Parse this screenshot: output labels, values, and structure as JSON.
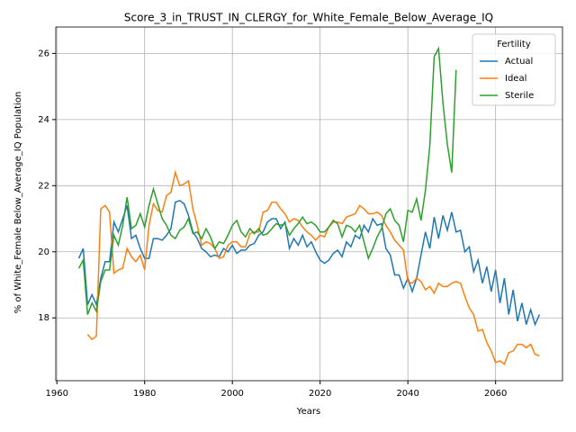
{
  "chart_data": {
    "type": "line",
    "title": "Score_3_in_TRUST_IN_CLERGY_for_White_Female_Below_Average_IQ",
    "x_label": "Years",
    "y_label": "% of White_Female Below_Average_IQ Population",
    "legend_title": "Fertility",
    "legend_position": "upper right",
    "grid": true,
    "xlim": [
      1959.75,
      2075.25
    ],
    "ylim": [
      16.1,
      26.8
    ],
    "xticks": [
      1960,
      1980,
      2000,
      2020,
      2040,
      2060
    ],
    "yticks": [
      18,
      20,
      22,
      24,
      26
    ],
    "x": [
      1965,
      1966,
      1967,
      1968,
      1969,
      1970,
      1971,
      1972,
      1973,
      1974,
      1975,
      1976,
      1977,
      1978,
      1979,
      1980,
      1981,
      1982,
      1983,
      1984,
      1985,
      1986,
      1987,
      1988,
      1989,
      1990,
      1991,
      1992,
      1993,
      1994,
      1995,
      1996,
      1997,
      1998,
      1999,
      2000,
      2001,
      2002,
      2003,
      2004,
      2005,
      2006,
      2007,
      2008,
      2009,
      2010,
      2011,
      2012,
      2013,
      2014,
      2015,
      2016,
      2017,
      2018,
      2019,
      2020,
      2021,
      2022,
      2023,
      2024,
      2025,
      2026,
      2027,
      2028,
      2029,
      2030,
      2031,
      2032,
      2033,
      2034,
      2035,
      2036,
      2037,
      2038,
      2039,
      2040,
      2041,
      2042,
      2043,
      2044,
      2045,
      2046,
      2047,
      2048,
      2049,
      2050,
      2051,
      2052,
      2053,
      2054,
      2055,
      2056,
      2057,
      2058,
      2059,
      2060,
      2061,
      2062,
      2063,
      2064,
      2065,
      2066,
      2067,
      2068,
      2069,
      2070
    ],
    "series": [
      {
        "name": "Actual",
        "color": "#1f77b4",
        "values": [
          19.8,
          20.1,
          18.4,
          18.7,
          18.4,
          19.2,
          19.7,
          19.7,
          20.9,
          20.6,
          21.0,
          21.4,
          20.4,
          20.5,
          20.1,
          19.8,
          19.8,
          20.4,
          20.4,
          20.35,
          20.5,
          20.7,
          21.5,
          21.55,
          21.45,
          21.1,
          20.6,
          20.4,
          20.1,
          20.0,
          19.85,
          19.9,
          19.85,
          20.1,
          20.0,
          20.2,
          19.95,
          20.05,
          20.05,
          20.2,
          20.25,
          20.5,
          20.6,
          20.9,
          21.0,
          21.0,
          20.7,
          20.9,
          20.1,
          20.4,
          20.2,
          20.5,
          20.15,
          20.3,
          20.0,
          19.75,
          19.65,
          19.75,
          19.95,
          20.05,
          19.85,
          20.3,
          20.15,
          20.5,
          20.4,
          20.8,
          20.6,
          21.0,
          20.8,
          20.85,
          20.1,
          19.9,
          19.3,
          19.3,
          18.9,
          19.2,
          18.8,
          19.2,
          19.9,
          20.6,
          20.1,
          21.05,
          20.4,
          21.1,
          20.65,
          21.2,
          20.6,
          20.65,
          20.0,
          20.15,
          19.4,
          19.75,
          19.05,
          19.55,
          18.8,
          19.45,
          18.45,
          19.2,
          18.1,
          18.85,
          17.9,
          18.45,
          17.8,
          18.25,
          17.8,
          18.1
        ]
      },
      {
        "name": "Ideal",
        "color": "#ff7f0e",
        "values": [
          null,
          null,
          17.5,
          17.35,
          17.45,
          21.3,
          21.4,
          21.2,
          19.35,
          19.45,
          19.5,
          20.1,
          19.85,
          19.7,
          19.9,
          19.45,
          20.8,
          21.45,
          21.25,
          21.2,
          21.7,
          21.8,
          22.4,
          22.0,
          22.05,
          22.15,
          21.3,
          20.8,
          20.2,
          20.3,
          20.25,
          20.1,
          19.8,
          19.85,
          20.2,
          20.3,
          20.3,
          20.15,
          20.15,
          20.55,
          20.6,
          20.6,
          21.2,
          21.25,
          21.5,
          21.5,
          21.3,
          21.15,
          20.9,
          21.0,
          20.95,
          20.75,
          20.6,
          20.5,
          20.35,
          20.5,
          20.45,
          20.75,
          20.9,
          20.9,
          20.85,
          21.05,
          21.1,
          21.15,
          21.4,
          21.3,
          21.15,
          21.15,
          21.2,
          21.1,
          20.8,
          20.6,
          20.35,
          20.2,
          20.05,
          19.1,
          19.05,
          19.2,
          19.1,
          18.85,
          18.95,
          18.75,
          19.05,
          18.95,
          18.95,
          19.05,
          19.1,
          19.05,
          18.65,
          18.3,
          18.1,
          17.6,
          17.65,
          17.25,
          17.0,
          16.65,
          16.7,
          16.6,
          16.95,
          17.0,
          17.2,
          17.2,
          17.1,
          17.2,
          16.9,
          16.85
        ]
      },
      {
        "name": "Sterile",
        "color": "#2ca02c",
        "values": [
          19.5,
          19.75,
          18.1,
          18.45,
          18.2,
          19.1,
          19.45,
          19.45,
          20.5,
          20.2,
          20.8,
          21.65,
          20.7,
          20.8,
          21.15,
          20.75,
          21.4,
          21.9,
          21.45,
          21.0,
          20.8,
          20.5,
          20.4,
          20.65,
          20.75,
          21.0,
          20.55,
          20.6,
          20.4,
          20.7,
          20.45,
          20.1,
          20.3,
          20.25,
          20.5,
          20.8,
          20.95,
          20.6,
          20.45,
          20.7,
          20.55,
          20.7,
          20.5,
          20.55,
          20.7,
          20.85,
          20.8,
          20.85,
          20.5,
          20.7,
          20.85,
          21.05,
          20.85,
          20.9,
          20.8,
          20.6,
          20.6,
          20.75,
          20.95,
          20.85,
          20.45,
          20.8,
          20.75,
          20.6,
          20.8,
          20.3,
          19.8,
          20.1,
          20.45,
          20.7,
          21.15,
          21.3,
          20.95,
          20.8,
          20.3,
          21.25,
          21.2,
          21.6,
          20.95,
          21.85,
          23.2,
          25.9,
          26.15,
          24.5,
          23.25,
          22.4,
          25.5,
          null,
          null,
          null,
          null,
          null,
          null,
          null,
          null,
          null,
          null,
          null,
          null,
          null,
          null,
          null,
          null,
          null,
          null,
          null
        ]
      }
    ]
  }
}
